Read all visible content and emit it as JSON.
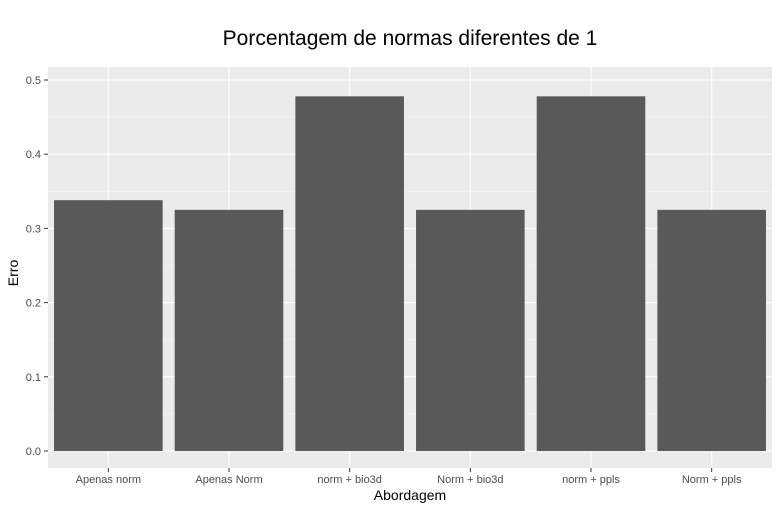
{
  "chart_data": {
    "type": "bar",
    "title": "Porcentagem de normas diferentes de 1",
    "xlabel": "Abordagem",
    "ylabel": "Erro",
    "categories": [
      "Apenas norm",
      "Apenas Norm",
      "norm + bio3d",
      "Norm + bio3d",
      "norm + ppls",
      "Norm + ppls"
    ],
    "values": [
      0.338,
      0.325,
      0.478,
      0.325,
      0.478,
      0.325
    ],
    "ylim": [
      0,
      0.5
    ],
    "yticks": [
      "0.0",
      "0.1",
      "0.2",
      "0.3",
      "0.4",
      "0.5"
    ],
    "grid": true,
    "legend": "none",
    "colors": {
      "bar": "#595959",
      "panel": "#ebebeb",
      "grid_major": "#ffffff",
      "tick_text": "#4d4d4d",
      "tick_mark": "#333333"
    }
  }
}
